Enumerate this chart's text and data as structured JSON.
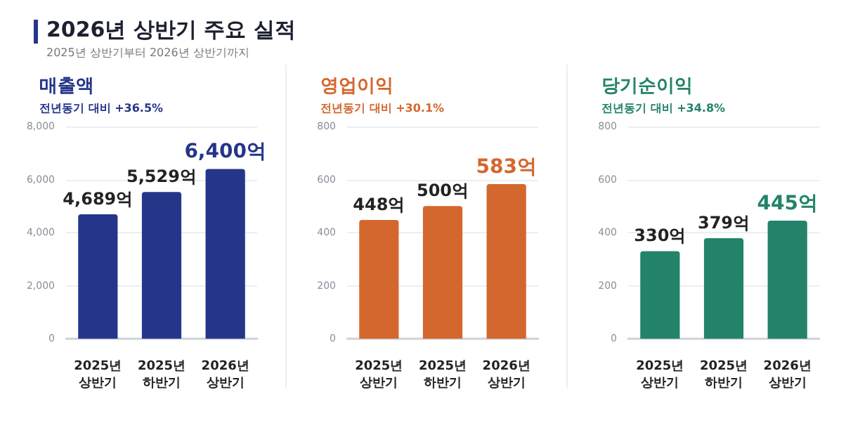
{
  "chart_data": [
    {
      "type": "bar",
      "title": "매출액",
      "subtitle": "전년동기 대비 +36.5%",
      "annotations": [
        "2026년 상반기 주요 실적",
        "2025년 상반기부터 2026년 상반기까지"
      ],
      "categories": [
        "2025년\n상반기",
        "2025년\n하반기",
        "2026년\n상반기"
      ],
      "values": [
        4689,
        5529,
        6400
      ],
      "value_labels": [
        "4,689억",
        "5,529억",
        "6,400억"
      ],
      "color": "#25368a",
      "ylim": [
        0,
        8000
      ],
      "yticks": [
        0,
        {
          "value": 2000,
          "label": "2,000"
        },
        {
          "value": 4000,
          "label": "4,000"
        },
        {
          "value": 6000,
          "label": "6,000"
        },
        {
          "value": 8000,
          "label": "8,000"
        }
      ],
      "grid": "y"
    },
    {
      "type": "bar",
      "title": "영업이익",
      "subtitle": "전년동기 대비 +30.1%",
      "categories": [
        "2025년\n상반기",
        "2025년\n하반기",
        "2026년\n상반기"
      ],
      "values": [
        448,
        500,
        583
      ],
      "value_labels": [
        "448억",
        "500억",
        "583억"
      ],
      "color": "#d4672e",
      "ylim": [
        0,
        800
      ],
      "yticks": [
        0,
        200,
        400,
        600,
        800
      ],
      "grid": "y"
    },
    {
      "type": "bar",
      "title": "당기순이익",
      "subtitle": "전년동기 대비 +34.8%",
      "categories": [
        "2025년\n상반기",
        "2025년\n하반기",
        "2026년\n상반기"
      ],
      "values": [
        330,
        379,
        445
      ],
      "value_labels": [
        "330억",
        "379억",
        "445억"
      ],
      "color": "#23836a",
      "ylim": [
        0,
        800
      ],
      "yticks": [
        0,
        200,
        400,
        600,
        800
      ],
      "grid": "y"
    }
  ]
}
